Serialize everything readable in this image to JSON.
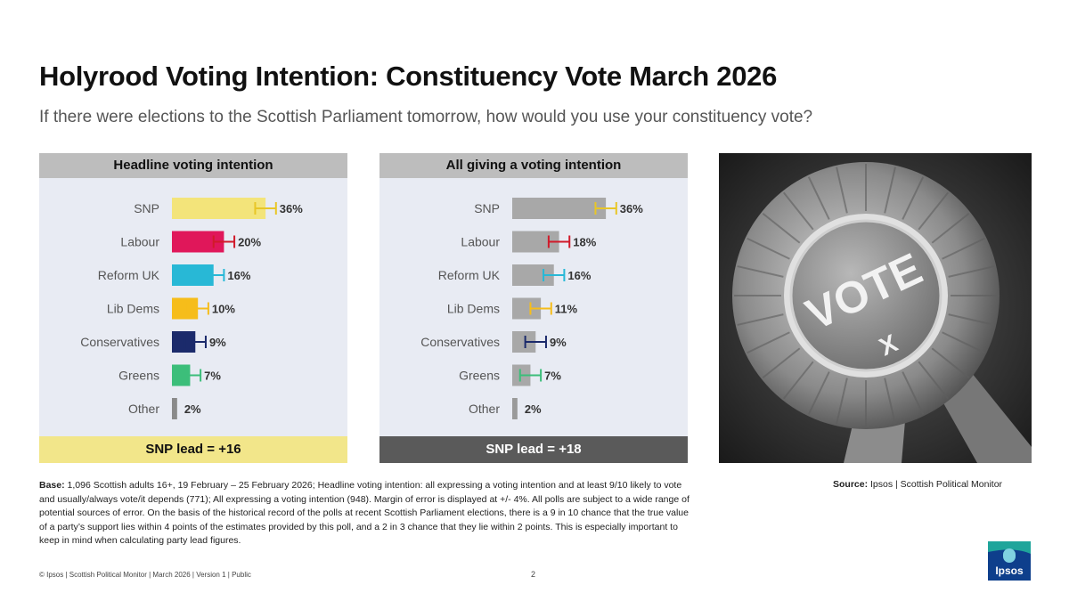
{
  "title": "Holyrood Voting Intention: Constituency Vote March 2026",
  "subtitle": "If there were elections to the Scottish Parliament tomorrow, how would you use your constituency vote?",
  "colors": {
    "SNP": "#f3e47a",
    "Labour": "#e0175a",
    "Reform UK": "#28b8d6",
    "Lib Dems": "#f6bd1a",
    "Conservatives": "#1b2a6b",
    "Greens": "#3cbe7a",
    "Other": "#9a9a9a",
    "grey_bar": "#a8a8a8",
    "snp_errorbar": "#e8c627",
    "labour_errorbar": "#d11a2a"
  },
  "chart_data": [
    {
      "type": "bar",
      "title": "Headline voting intention",
      "categories": [
        "SNP",
        "Labour",
        "Reform UK",
        "Lib Dems",
        "Conservatives",
        "Greens",
        "Other"
      ],
      "values": [
        36,
        20,
        16,
        10,
        9,
        7,
        2
      ],
      "value_labels": [
        "36%",
        "20%",
        "16%",
        "10%",
        "9%",
        "7%",
        "2%"
      ],
      "margin_of_error": 4,
      "footer": "SNP lead = +16"
    },
    {
      "type": "bar",
      "title": "All giving a voting intention",
      "categories": [
        "SNP",
        "Labour",
        "Reform UK",
        "Lib Dems",
        "Conservatives",
        "Greens",
        "Other"
      ],
      "values": [
        36,
        18,
        16,
        11,
        9,
        7,
        2
      ],
      "value_labels": [
        "36%",
        "18%",
        "16%",
        "11%",
        "9%",
        "7%",
        "2%"
      ],
      "margin_of_error": 4,
      "footer": "SNP lead = +18"
    }
  ],
  "photo": {
    "icon": "vote-rosette-image",
    "text": "VOTE"
  },
  "base_label": "Base:",
  "base_text": " 1,096 Scottish adults 16+, 19 February – 25 February 2026; Headline voting intention: all expressing a voting intention and at least 9/10 likely to vote and usually/always vote/it depends (771); All expressing a voting intention (948). Margin of error is displayed at +/- 4%. All polls are subject to a wide range of potential sources of error. On the basis of the historical record of the polls at recent Scottish Parliament elections, there is a 9 in 10 chance that the true value of a party’s support lies within 4 points of the estimates provided by this poll, and a 2 in 3 chance that they lie within 2 points. This is especially important to keep in mind when calculating party lead figures.",
  "source_label": "Source:",
  "source_text": " Ipsos | Scottish Political Monitor",
  "footer_note": "© Ipsos | Scottish Political Monitor | March 2026 | Version 1 | Public",
  "page_number": "2",
  "logo_text": "Ipsos"
}
